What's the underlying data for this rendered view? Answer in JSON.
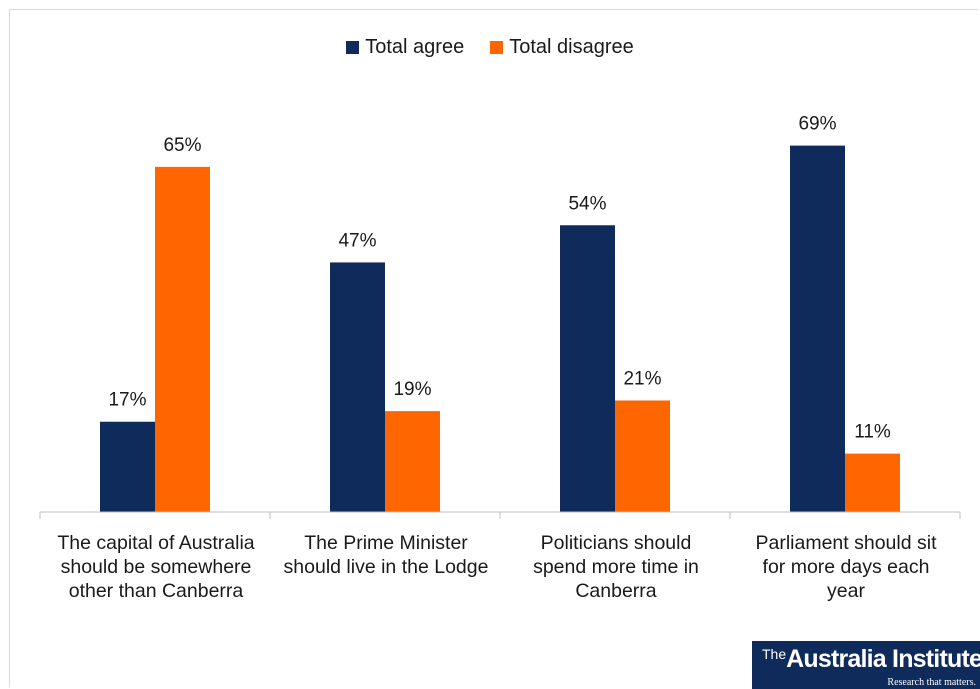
{
  "chart_data": {
    "type": "bar",
    "categories": [
      "The capital of Australia\nshould be somewhere\nother than Canberra",
      "The Prime Minister\nshould live in the Lodge",
      "Politicians should\nspend more time in\nCanberra",
      "Parliament should sit\nfor more days each\nyear"
    ],
    "series": [
      {
        "name": "Total agree",
        "values": [
          17,
          47,
          54,
          69
        ],
        "labels": [
          "17%",
          "47%",
          "54%",
          "69%"
        ],
        "color": "#0e2b5c"
      },
      {
        "name": "Total disagree",
        "values": [
          65,
          19,
          21,
          11
        ],
        "labels": [
          "65%",
          "19%",
          "21%",
          "11%"
        ],
        "color": "#ff6600"
      }
    ],
    "ylim": [
      0,
      80
    ],
    "legend_position": "top-center",
    "grid": false
  },
  "logo": {
    "sup": "The",
    "main": "Australia Institute",
    "tagline": "Research that matters."
  }
}
